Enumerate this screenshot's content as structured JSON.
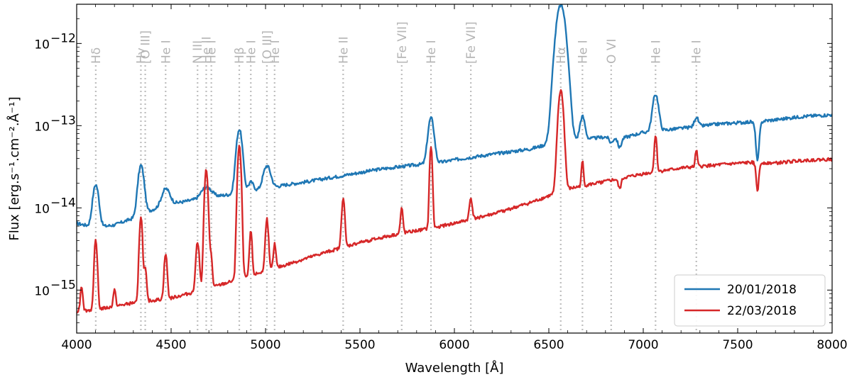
{
  "chart_data": {
    "type": "line",
    "title": "",
    "xlabel": "Wavelength [Å]",
    "ylabel": "Flux [erg.s⁻¹.cm⁻².Å⁻¹]",
    "xlim": [
      4000,
      8000
    ],
    "ylim": [
      3e-16,
      3e-12
    ],
    "yscale": "log",
    "xticks": [
      4000,
      4500,
      5000,
      5500,
      6000,
      6500,
      7000,
      7500,
      8000
    ],
    "yticks": [
      {
        "value": 1e-15,
        "label": "10",
        "exp": "−15"
      },
      {
        "value": 1e-14,
        "label": "10",
        "exp": "−14"
      },
      {
        "value": 1e-13,
        "label": "10",
        "exp": "−13"
      },
      {
        "value": 1e-12,
        "label": "10",
        "exp": "−12"
      }
    ],
    "legend_position": "bottom-right",
    "series": [
      {
        "name": "20/01/2018",
        "color": "#1f77b4",
        "continuum": [
          [
            4000,
            6.5e-15
          ],
          [
            4100,
            5.8e-15
          ],
          [
            4200,
            6.2e-15
          ],
          [
            4300,
            7.5e-15
          ],
          [
            4400,
            9.5e-15
          ],
          [
            4500,
            1.12e-14
          ],
          [
            4700,
            1.35e-14
          ],
          [
            4900,
            1.55e-14
          ],
          [
            5000,
            1.7e-14
          ],
          [
            5100,
            1.9e-14
          ],
          [
            5200,
            2.05e-14
          ],
          [
            5400,
            2.45e-14
          ],
          [
            5600,
            2.95e-14
          ],
          [
            5800,
            3.35e-14
          ],
          [
            5900,
            3.5e-14
          ],
          [
            6000,
            3.85e-14
          ],
          [
            6200,
            4.5e-14
          ],
          [
            6400,
            5.2e-14
          ],
          [
            6500,
            6e-14
          ],
          [
            6600,
            6.6e-14
          ],
          [
            6700,
            6.9e-14
          ],
          [
            6800,
            7.3e-14
          ],
          [
            6900,
            7.2e-14
          ],
          [
            7000,
            8.3e-14
          ],
          [
            7200,
            9.3e-14
          ],
          [
            7400,
            1.05e-13
          ],
          [
            7590,
            1.12e-13
          ],
          [
            7700,
            1.18e-13
          ],
          [
            7850,
            1.3e-13
          ],
          [
            8000,
            1.36e-13
          ]
        ],
        "features": [
          [
            4101,
            2.3,
            14
          ],
          [
            4340,
            3.0,
            14
          ],
          [
            4471,
            0.6,
            20
          ],
          [
            4686,
            0.35,
            25
          ],
          [
            4861,
            5.0,
            14
          ],
          [
            4922,
            0.3,
            14
          ],
          [
            5007,
            0.9,
            18
          ],
          [
            5876,
            2.6,
            14
          ],
          [
            6563,
            45,
            22
          ],
          [
            6678,
            0.9,
            12
          ],
          [
            7065,
            1.8,
            14
          ],
          [
            7281,
            0.3,
            10
          ],
          [
            6830,
            -0.15,
            10
          ],
          [
            6875,
            -0.25,
            10
          ],
          [
            7605,
            -0.68,
            10
          ]
        ]
      },
      {
        "name": "22/03/2018",
        "color": "#d62728",
        "continuum": [
          [
            4000,
            5.5e-16
          ],
          [
            4100,
            5.8e-16
          ],
          [
            4200,
            6.3e-16
          ],
          [
            4300,
            7e-16
          ],
          [
            4500,
            8e-16
          ],
          [
            4700,
            1.05e-15
          ],
          [
            4900,
            1.45e-15
          ],
          [
            5100,
            2e-15
          ],
          [
            5300,
            2.8e-15
          ],
          [
            5500,
            3.8e-15
          ],
          [
            5700,
            4.8e-15
          ],
          [
            5900,
            5.8e-15
          ],
          [
            6000,
            6.5e-15
          ],
          [
            6200,
            8.4e-15
          ],
          [
            6400,
            1.15e-14
          ],
          [
            6500,
            1.4e-14
          ],
          [
            6600,
            1.7e-14
          ],
          [
            6800,
            2.1e-14
          ],
          [
            7000,
            2.6e-14
          ],
          [
            7200,
            3.05e-14
          ],
          [
            7400,
            3.35e-14
          ],
          [
            7590,
            3.6e-14
          ],
          [
            7700,
            3.5e-14
          ],
          [
            7850,
            3.8e-14
          ],
          [
            8000,
            3.9e-14
          ]
        ],
        "features": [
          [
            4026,
            1.0,
            6
          ],
          [
            4101,
            6.0,
            7
          ],
          [
            4200,
            0.6,
            6
          ],
          [
            4340,
            10.0,
            7
          ],
          [
            4363,
            1.5,
            6
          ],
          [
            4471,
            2.5,
            7
          ],
          [
            4640,
            3.0,
            8
          ],
          [
            4686,
            27,
            8
          ],
          [
            4711,
            1.5,
            6
          ],
          [
            4861,
            40,
            8
          ],
          [
            4922,
            2.5,
            6
          ],
          [
            5007,
            3.3,
            7
          ],
          [
            5048,
            1.0,
            6
          ],
          [
            5411,
            3.0,
            7
          ],
          [
            5721,
            1.0,
            6
          ],
          [
            5876,
            9.0,
            6
          ],
          [
            6087,
            0.8,
            7
          ],
          [
            6563,
            16,
            12
          ],
          [
            6678,
            1.0,
            5
          ],
          [
            7065,
            1.8,
            6
          ],
          [
            7281,
            0.6,
            5
          ],
          [
            6875,
            -0.25,
            8
          ],
          [
            7605,
            -0.55,
            8
          ]
        ]
      }
    ],
    "lines": [
      {
        "wavelength": 4101,
        "label": "Hδ"
      },
      {
        "wavelength": 4340,
        "label": "Hγ"
      },
      {
        "wavelength": 4363,
        "label": "[O III]"
      },
      {
        "wavelength": 4471,
        "label": "He I"
      },
      {
        "wavelength": 4640,
        "label": "N III"
      },
      {
        "wavelength": 4686,
        "label": "He II"
      },
      {
        "wavelength": 4713,
        "label": "He I"
      },
      {
        "wavelength": 4861,
        "label": "Hβ"
      },
      {
        "wavelength": 4922,
        "label": "He I"
      },
      {
        "wavelength": 5007,
        "label": "[O III]"
      },
      {
        "wavelength": 5048,
        "label": "He I"
      },
      {
        "wavelength": 5411,
        "label": "He II"
      },
      {
        "wavelength": 5721,
        "label": "[Fe VII]"
      },
      {
        "wavelength": 5876,
        "label": "He I"
      },
      {
        "wavelength": 6087,
        "label": "[Fe VII]"
      },
      {
        "wavelength": 6563,
        "label": "Hα"
      },
      {
        "wavelength": 6678,
        "label": "He I"
      },
      {
        "wavelength": 6830,
        "label": "O VI"
      },
      {
        "wavelength": 7065,
        "label": "He I"
      },
      {
        "wavelength": 7281,
        "label": "He I"
      }
    ]
  }
}
